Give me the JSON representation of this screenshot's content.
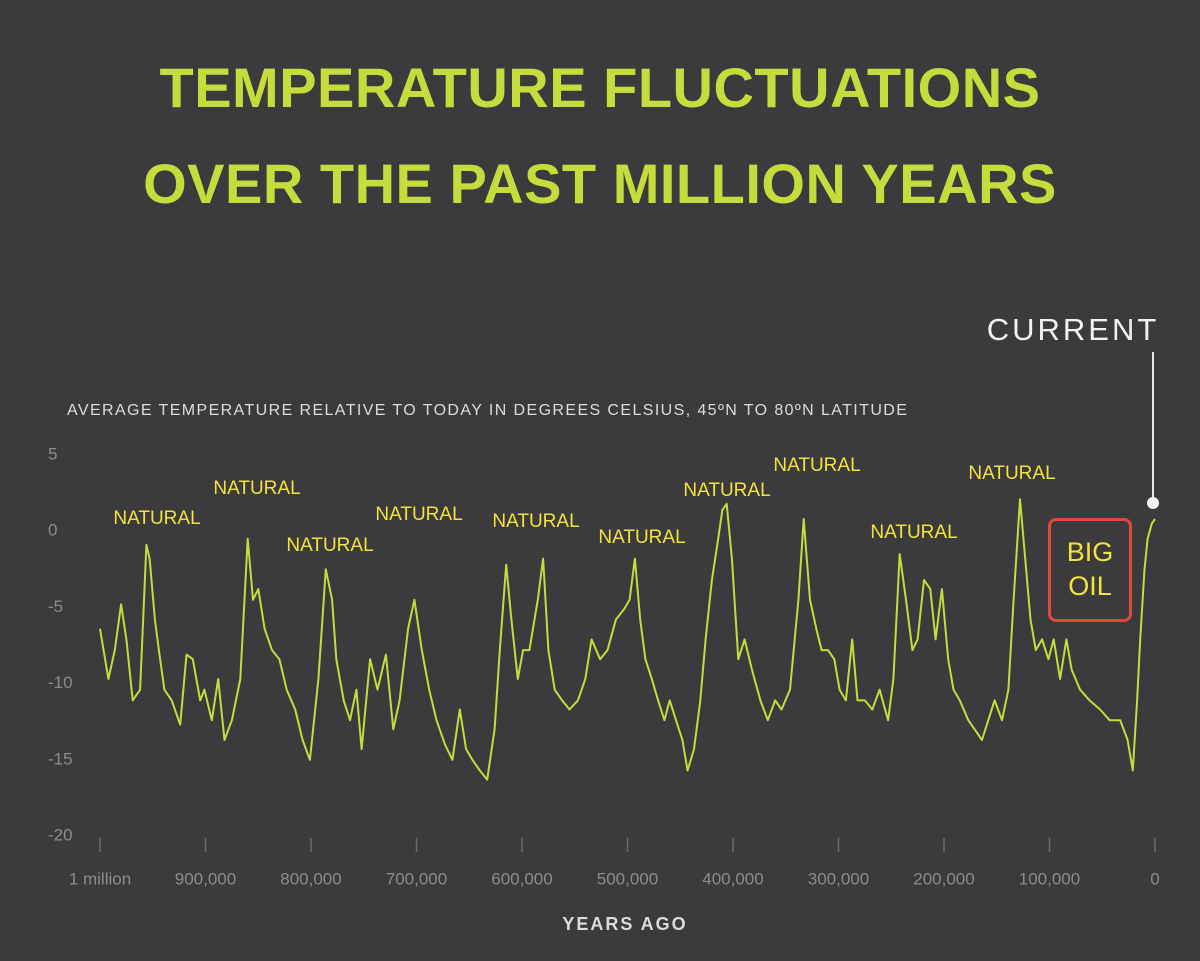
{
  "chart_data": {
    "type": "line",
    "title": "TEMPERATURE FLUCTUATIONS\nOVER THE PAST MILLION YEARS",
    "y_axis_label": "AVERAGE TEMPERATURE RELATIVE TO TODAY IN DEGREES CELSIUS, 45ºN TO 80ºN LATITUDE",
    "x_axis_label": "YEARS AGO",
    "current_label": "CURRENT",
    "callout": "BIG\nOIL",
    "annotations": [
      "NATURAL",
      "NATURAL",
      "NATURAL",
      "NATURAL",
      "NATURAL",
      "NATURAL",
      "NATURAL",
      "NATURAL",
      "NATURAL",
      "NATURAL"
    ],
    "color": "#c6dc3c",
    "xlim": [
      1000000,
      0
    ],
    "ylim": [
      -20,
      5
    ],
    "xticks": [
      {
        "value": 1000000,
        "label": "1 million"
      },
      {
        "value": 900000,
        "label": "900,000"
      },
      {
        "value": 800000,
        "label": "800,000"
      },
      {
        "value": 700000,
        "label": "700,000"
      },
      {
        "value": 600000,
        "label": "600,000"
      },
      {
        "value": 500000,
        "label": "500,000"
      },
      {
        "value": 400000,
        "label": "400,000"
      },
      {
        "value": 300000,
        "label": "300,000"
      },
      {
        "value": 200000,
        "label": "200,000"
      },
      {
        "value": 100000,
        "label": "100,000"
      },
      0
    ],
    "yticks": [
      5,
      0,
      -5,
      -10,
      -15,
      -20
    ],
    "x": [
      1000000,
      992000,
      986000,
      980000,
      975000,
      969000,
      962000,
      956000,
      953000,
      948000,
      943000,
      939000,
      932000,
      924000,
      918000,
      912000,
      905000,
      901000,
      894000,
      888000,
      882000,
      875000,
      867000,
      860000,
      855000,
      850000,
      844000,
      837000,
      830000,
      823000,
      815000,
      808000,
      801000,
      793000,
      786000,
      780000,
      776000,
      769000,
      763000,
      757000,
      752000,
      744000,
      737000,
      729000,
      722000,
      716000,
      708000,
      702000,
      695000,
      688000,
      681000,
      673000,
      666000,
      659000,
      653000,
      647000,
      640000,
      633000,
      626000,
      621000,
      615000,
      610000,
      604000,
      599000,
      593000,
      585000,
      580000,
      575000,
      569000,
      562000,
      555000,
      547000,
      540000,
      534000,
      526000,
      519000,
      511000,
      503000,
      498000,
      493000,
      488000,
      483000,
      477000,
      471000,
      465000,
      460000,
      454000,
      448000,
      443000,
      437000,
      431000,
      426000,
      420000,
      414000,
      410000,
      406000,
      401000,
      395000,
      389000,
      382000,
      374000,
      367000,
      360000,
      354000,
      346000,
      338000,
      333000,
      327000,
      321000,
      316000,
      310000,
      304000,
      299000,
      293000,
      287000,
      282000,
      275000,
      268000,
      261000,
      253000,
      248000,
      242000,
      236000,
      230000,
      225000,
      219000,
      213000,
      208000,
      202000,
      196000,
      191000,
      185000,
      177000,
      171000,
      164000,
      158000,
      152000,
      145000,
      139000,
      134000,
      128000,
      123000,
      118000,
      113000,
      107000,
      101000,
      96000,
      90000,
      84000,
      79000,
      71000,
      62000,
      52000,
      43000,
      33000,
      26000,
      21000,
      17000,
      14000,
      10000,
      7000,
      3000,
      0
    ],
    "values": [
      -6.4,
      -9.7,
      -7.8,
      -4.8,
      -7.1,
      -11.1,
      -10.4,
      -0.9,
      -1.8,
      -5.8,
      -8.4,
      -10.4,
      -11.1,
      -12.7,
      -8.1,
      -8.4,
      -11.1,
      -10.4,
      -12.4,
      -9.7,
      -13.7,
      -12.4,
      -9.7,
      -0.5,
      -4.5,
      -3.8,
      -6.4,
      -7.8,
      -8.4,
      -10.4,
      -11.7,
      -13.7,
      -15,
      -9.7,
      -2.5,
      -4.5,
      -8.4,
      -11.1,
      -12.4,
      -10.4,
      -14.3,
      -8.4,
      -10.4,
      -8.1,
      -13,
      -11.1,
      -6.4,
      -4.5,
      -7.8,
      -10.4,
      -12.4,
      -14,
      -15,
      -11.7,
      -14.3,
      -15,
      -15.7,
      -16.3,
      -13,
      -7.8,
      -2.2,
      -5.8,
      -9.7,
      -7.8,
      -7.8,
      -4.5,
      -1.8,
      -7.8,
      -10.4,
      -11.1,
      -11.7,
      -11.1,
      -9.7,
      -7.1,
      -8.4,
      -7.8,
      -5.8,
      -5.1,
      -4.5,
      -1.8,
      -5.8,
      -8.4,
      -9.7,
      -11.1,
      -12.4,
      -11.1,
      -12.4,
      -13.7,
      -15.7,
      -14.3,
      -11.1,
      -7.1,
      -3.2,
      -0.5,
      1.4,
      1.8,
      -1.8,
      -8.4,
      -7.1,
      -9.1,
      -11.1,
      -12.4,
      -11.1,
      -11.7,
      -10.4,
      -4.5,
      0.8,
      -4.5,
      -6.4,
      -7.8,
      -7.8,
      -8.4,
      -10.4,
      -11.1,
      -7.1,
      -11.1,
      -11.1,
      -11.7,
      -10.4,
      -12.4,
      -9.7,
      -1.5,
      -4.5,
      -7.8,
      -7.1,
      -3.2,
      -3.8,
      -7.1,
      -3.8,
      -8.4,
      -10.4,
      -11.1,
      -12.4,
      -13,
      -13.7,
      -12.4,
      -11.1,
      -12.4,
      -10.4,
      -4.5,
      2.1,
      -1.8,
      -5.8,
      -7.8,
      -7.1,
      -8.4,
      -7.1,
      -9.7,
      -7.1,
      -9.1,
      -10.4,
      -11.1,
      -11.7,
      -12.4,
      -12.4,
      -13.7,
      -15.7,
      -11.1,
      -7.1,
      -2.5,
      -0.5,
      0.5,
      0.8
    ]
  }
}
